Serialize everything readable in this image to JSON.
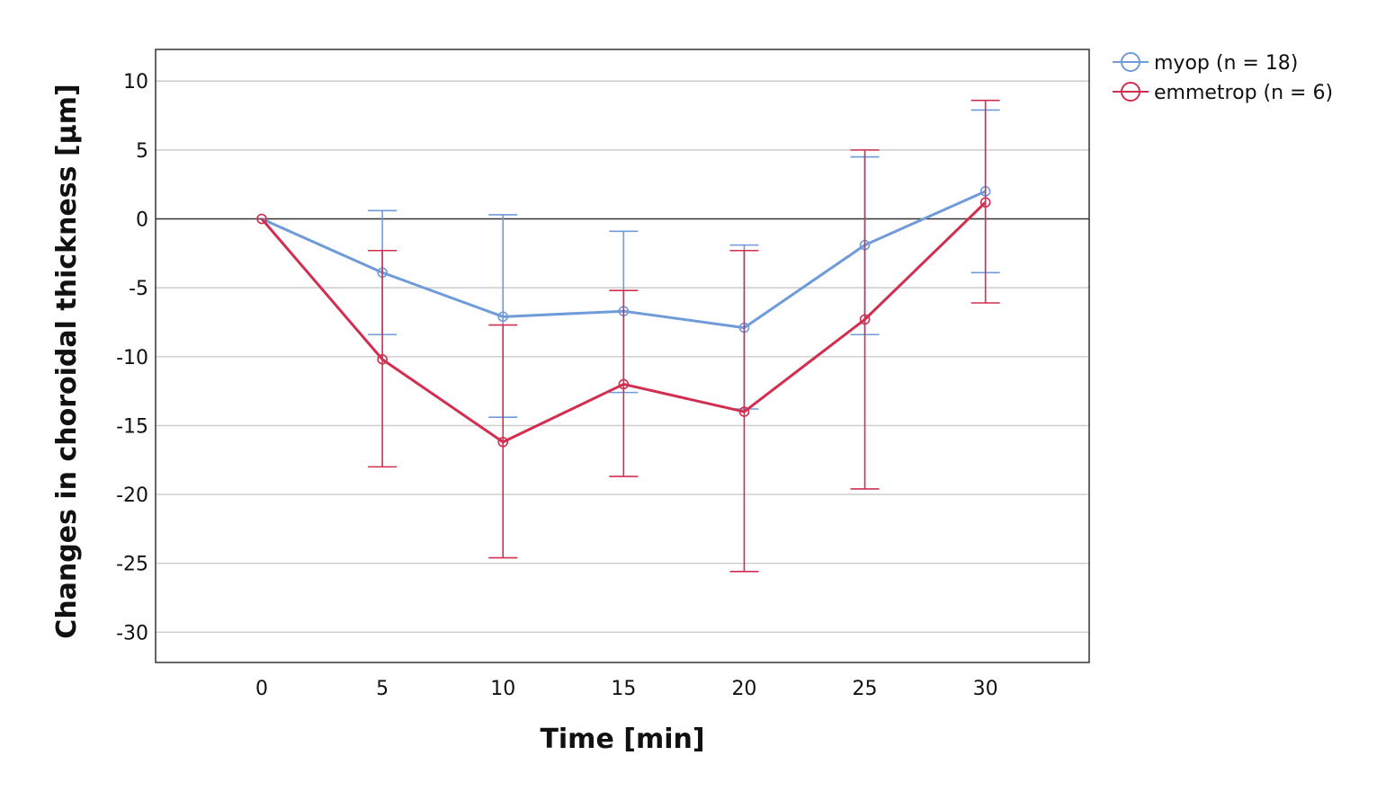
{
  "chart_data": {
    "type": "line",
    "title": "",
    "xlabel": "Time [min]",
    "ylabel": "Changes in choroidal thickness [µm]",
    "x": [
      0,
      5,
      10,
      15,
      20,
      25,
      30
    ],
    "x_ticks": [
      "0",
      "5",
      "10",
      "15",
      "20",
      "25",
      "30"
    ],
    "xlim": [
      -4.4,
      34.3
    ],
    "ylim": [
      -32.2,
      12.3
    ],
    "y_ticks": [
      "10",
      "5",
      "0",
      "-5",
      "-10",
      "-15",
      "-20",
      "-25",
      "-30"
    ],
    "grid": true,
    "legend_position": "top-right outside",
    "series": [
      {
        "name": "myop (n = 18)",
        "color": "#6f9bd8",
        "values": [
          0,
          -3.9,
          -7.1,
          -6.7,
          -7.9,
          -1.9,
          2.0
        ],
        "error_low": [
          0,
          -8.4,
          -14.4,
          -12.6,
          -13.8,
          -8.4,
          -3.9
        ],
        "error_high": [
          0,
          0.6,
          0.3,
          -0.9,
          -1.9,
          4.5,
          7.9
        ]
      },
      {
        "name": "emmetrop (n = 6)",
        "color": "#d22f50",
        "values": [
          0,
          -10.2,
          -16.2,
          -12.0,
          -14.0,
          -7.3,
          1.2
        ],
        "error_low": [
          0,
          -18.0,
          -24.6,
          -18.7,
          -25.6,
          -19.6,
          -6.1
        ],
        "error_high": [
          0,
          -2.3,
          -7.7,
          -5.2,
          -2.3,
          5.0,
          8.6
        ]
      }
    ]
  }
}
